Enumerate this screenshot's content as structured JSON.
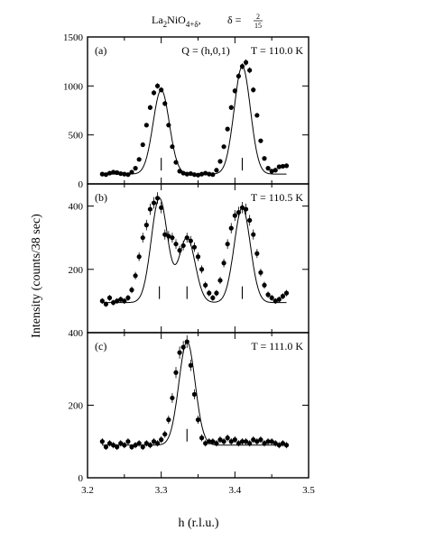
{
  "title": {
    "compound_parts": [
      "La",
      "2",
      "NiO",
      "4+δ"
    ],
    "delta_label": "δ =",
    "delta_num": "2",
    "delta_den": "15"
  },
  "ylabel": "Intensity (counts/38 sec)",
  "xlabel": "h (r.l.u.)",
  "chart_data": [
    {
      "type": "scatter",
      "panel": "(a)",
      "annotation": "Q = (h,0,1)",
      "temperature": "T = 110.0 K",
      "xlim": [
        3.2,
        3.5
      ],
      "ylim": [
        0,
        1500
      ],
      "yticks": [
        "0",
        "500",
        "1000",
        "1500"
      ],
      "x": [
        3.22,
        3.225,
        3.23,
        3.235,
        3.24,
        3.245,
        3.25,
        3.255,
        3.26,
        3.265,
        3.27,
        3.275,
        3.28,
        3.285,
        3.29,
        3.295,
        3.3,
        3.305,
        3.31,
        3.315,
        3.32,
        3.325,
        3.33,
        3.335,
        3.34,
        3.345,
        3.35,
        3.355,
        3.36,
        3.365,
        3.37,
        3.375,
        3.38,
        3.385,
        3.39,
        3.395,
        3.4,
        3.405,
        3.41,
        3.415,
        3.42,
        3.425,
        3.43,
        3.435,
        3.44,
        3.445,
        3.45,
        3.455,
        3.46,
        3.465,
        3.47
      ],
      "y": [
        100,
        95,
        110,
        120,
        115,
        105,
        100,
        95,
        120,
        160,
        250,
        400,
        600,
        780,
        930,
        1000,
        960,
        820,
        600,
        380,
        220,
        130,
        110,
        100,
        105,
        95,
        90,
        100,
        110,
        100,
        95,
        140,
        230,
        380,
        560,
        780,
        950,
        1100,
        1200,
        1240,
        1160,
        960,
        700,
        440,
        260,
        160,
        130,
        140,
        175,
        180,
        185
      ],
      "fit_centers": [
        3.3,
        3.41
      ],
      "markers": [
        3.3,
        3.41
      ]
    },
    {
      "type": "scatter",
      "panel": "(b)",
      "temperature": "T = 110.5 K",
      "xlim": [
        3.2,
        3.5
      ],
      "ylim": [
        0,
        470
      ],
      "yticks": [
        "200",
        "400"
      ],
      "x": [
        3.22,
        3.225,
        3.23,
        3.235,
        3.24,
        3.245,
        3.25,
        3.255,
        3.26,
        3.265,
        3.27,
        3.275,
        3.28,
        3.285,
        3.29,
        3.295,
        3.3,
        3.305,
        3.31,
        3.315,
        3.32,
        3.325,
        3.33,
        3.335,
        3.34,
        3.345,
        3.35,
        3.355,
        3.36,
        3.365,
        3.37,
        3.375,
        3.38,
        3.385,
        3.39,
        3.395,
        3.4,
        3.405,
        3.41,
        3.415,
        3.42,
        3.425,
        3.43,
        3.435,
        3.44,
        3.445,
        3.45,
        3.455,
        3.46,
        3.465,
        3.47
      ],
      "y": [
        100,
        90,
        110,
        95,
        100,
        105,
        100,
        110,
        135,
        180,
        240,
        300,
        340,
        390,
        410,
        425,
        395,
        310,
        305,
        300,
        280,
        260,
        275,
        300,
        290,
        270,
        240,
        200,
        150,
        125,
        110,
        125,
        165,
        220,
        280,
        330,
        370,
        380,
        395,
        390,
        355,
        310,
        250,
        190,
        150,
        120,
        110,
        100,
        105,
        115,
        125
      ],
      "fit_centers": [
        3.2975,
        3.335,
        3.41
      ],
      "markers": [
        3.2975,
        3.335,
        3.41
      ]
    },
    {
      "type": "scatter",
      "panel": "(c)",
      "temperature": "T = 111.0 K",
      "xlim": [
        3.2,
        3.5
      ],
      "ylim": [
        0,
        400
      ],
      "yticks": [
        "0",
        "200",
        "400"
      ],
      "x": [
        3.22,
        3.225,
        3.23,
        3.235,
        3.24,
        3.245,
        3.25,
        3.255,
        3.26,
        3.265,
        3.27,
        3.275,
        3.28,
        3.285,
        3.29,
        3.295,
        3.3,
        3.305,
        3.31,
        3.315,
        3.32,
        3.325,
        3.33,
        3.335,
        3.34,
        3.345,
        3.35,
        3.355,
        3.36,
        3.365,
        3.37,
        3.375,
        3.38,
        3.385,
        3.39,
        3.395,
        3.4,
        3.405,
        3.41,
        3.415,
        3.42,
        3.425,
        3.43,
        3.435,
        3.44,
        3.445,
        3.45,
        3.455,
        3.46,
        3.465,
        3.47
      ],
      "y": [
        100,
        85,
        95,
        90,
        85,
        95,
        90,
        100,
        85,
        90,
        95,
        85,
        95,
        90,
        100,
        95,
        105,
        120,
        160,
        220,
        290,
        345,
        360,
        375,
        310,
        230,
        160,
        110,
        95,
        100,
        100,
        95,
        105,
        100,
        110,
        100,
        105,
        95,
        100,
        100,
        95,
        105,
        100,
        105,
        95,
        100,
        100,
        95,
        90,
        95,
        90
      ],
      "fit_centers": [
        3.335
      ],
      "markers": [
        3.335
      ]
    }
  ],
  "xticks": [
    "3.2",
    "3.3",
    "3.4",
    "3.5"
  ]
}
